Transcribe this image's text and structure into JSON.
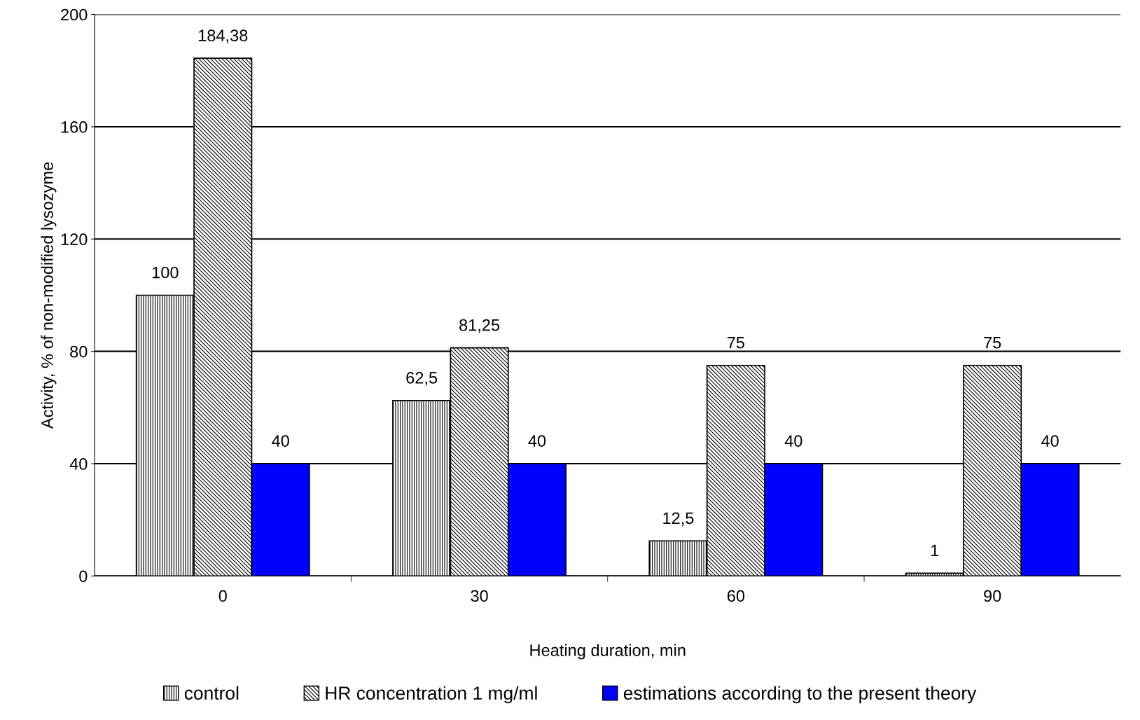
{
  "chart_data": {
    "type": "bar",
    "xlabel": "Heating duration, min",
    "ylabel": "Activity, % of non-modified lysozyme",
    "categories": [
      "0",
      "30",
      "60",
      "90"
    ],
    "series": [
      {
        "name": "control",
        "color": "#000000",
        "values": [
          100,
          62.5,
          12.5,
          1
        ],
        "value_labels": [
          "100",
          "62,5",
          "12,5",
          "1"
        ]
      },
      {
        "name": "HR concentration 1 mg/ml",
        "color": "#000000",
        "values": [
          184.38,
          81.25,
          75,
          75
        ],
        "value_labels": [
          "184,38",
          "81,25",
          "75",
          "75"
        ]
      },
      {
        "name": "estimations according to the present theory",
        "color": "#0000ff",
        "values": [
          40,
          40,
          40,
          40
        ],
        "value_labels": [
          "40",
          "40",
          "40",
          "40"
        ]
      }
    ],
    "ylim": [
      0,
      200
    ],
    "yticks": [
      0,
      40,
      80,
      120,
      160,
      200
    ],
    "grid": "y",
    "legend": "bottom"
  }
}
